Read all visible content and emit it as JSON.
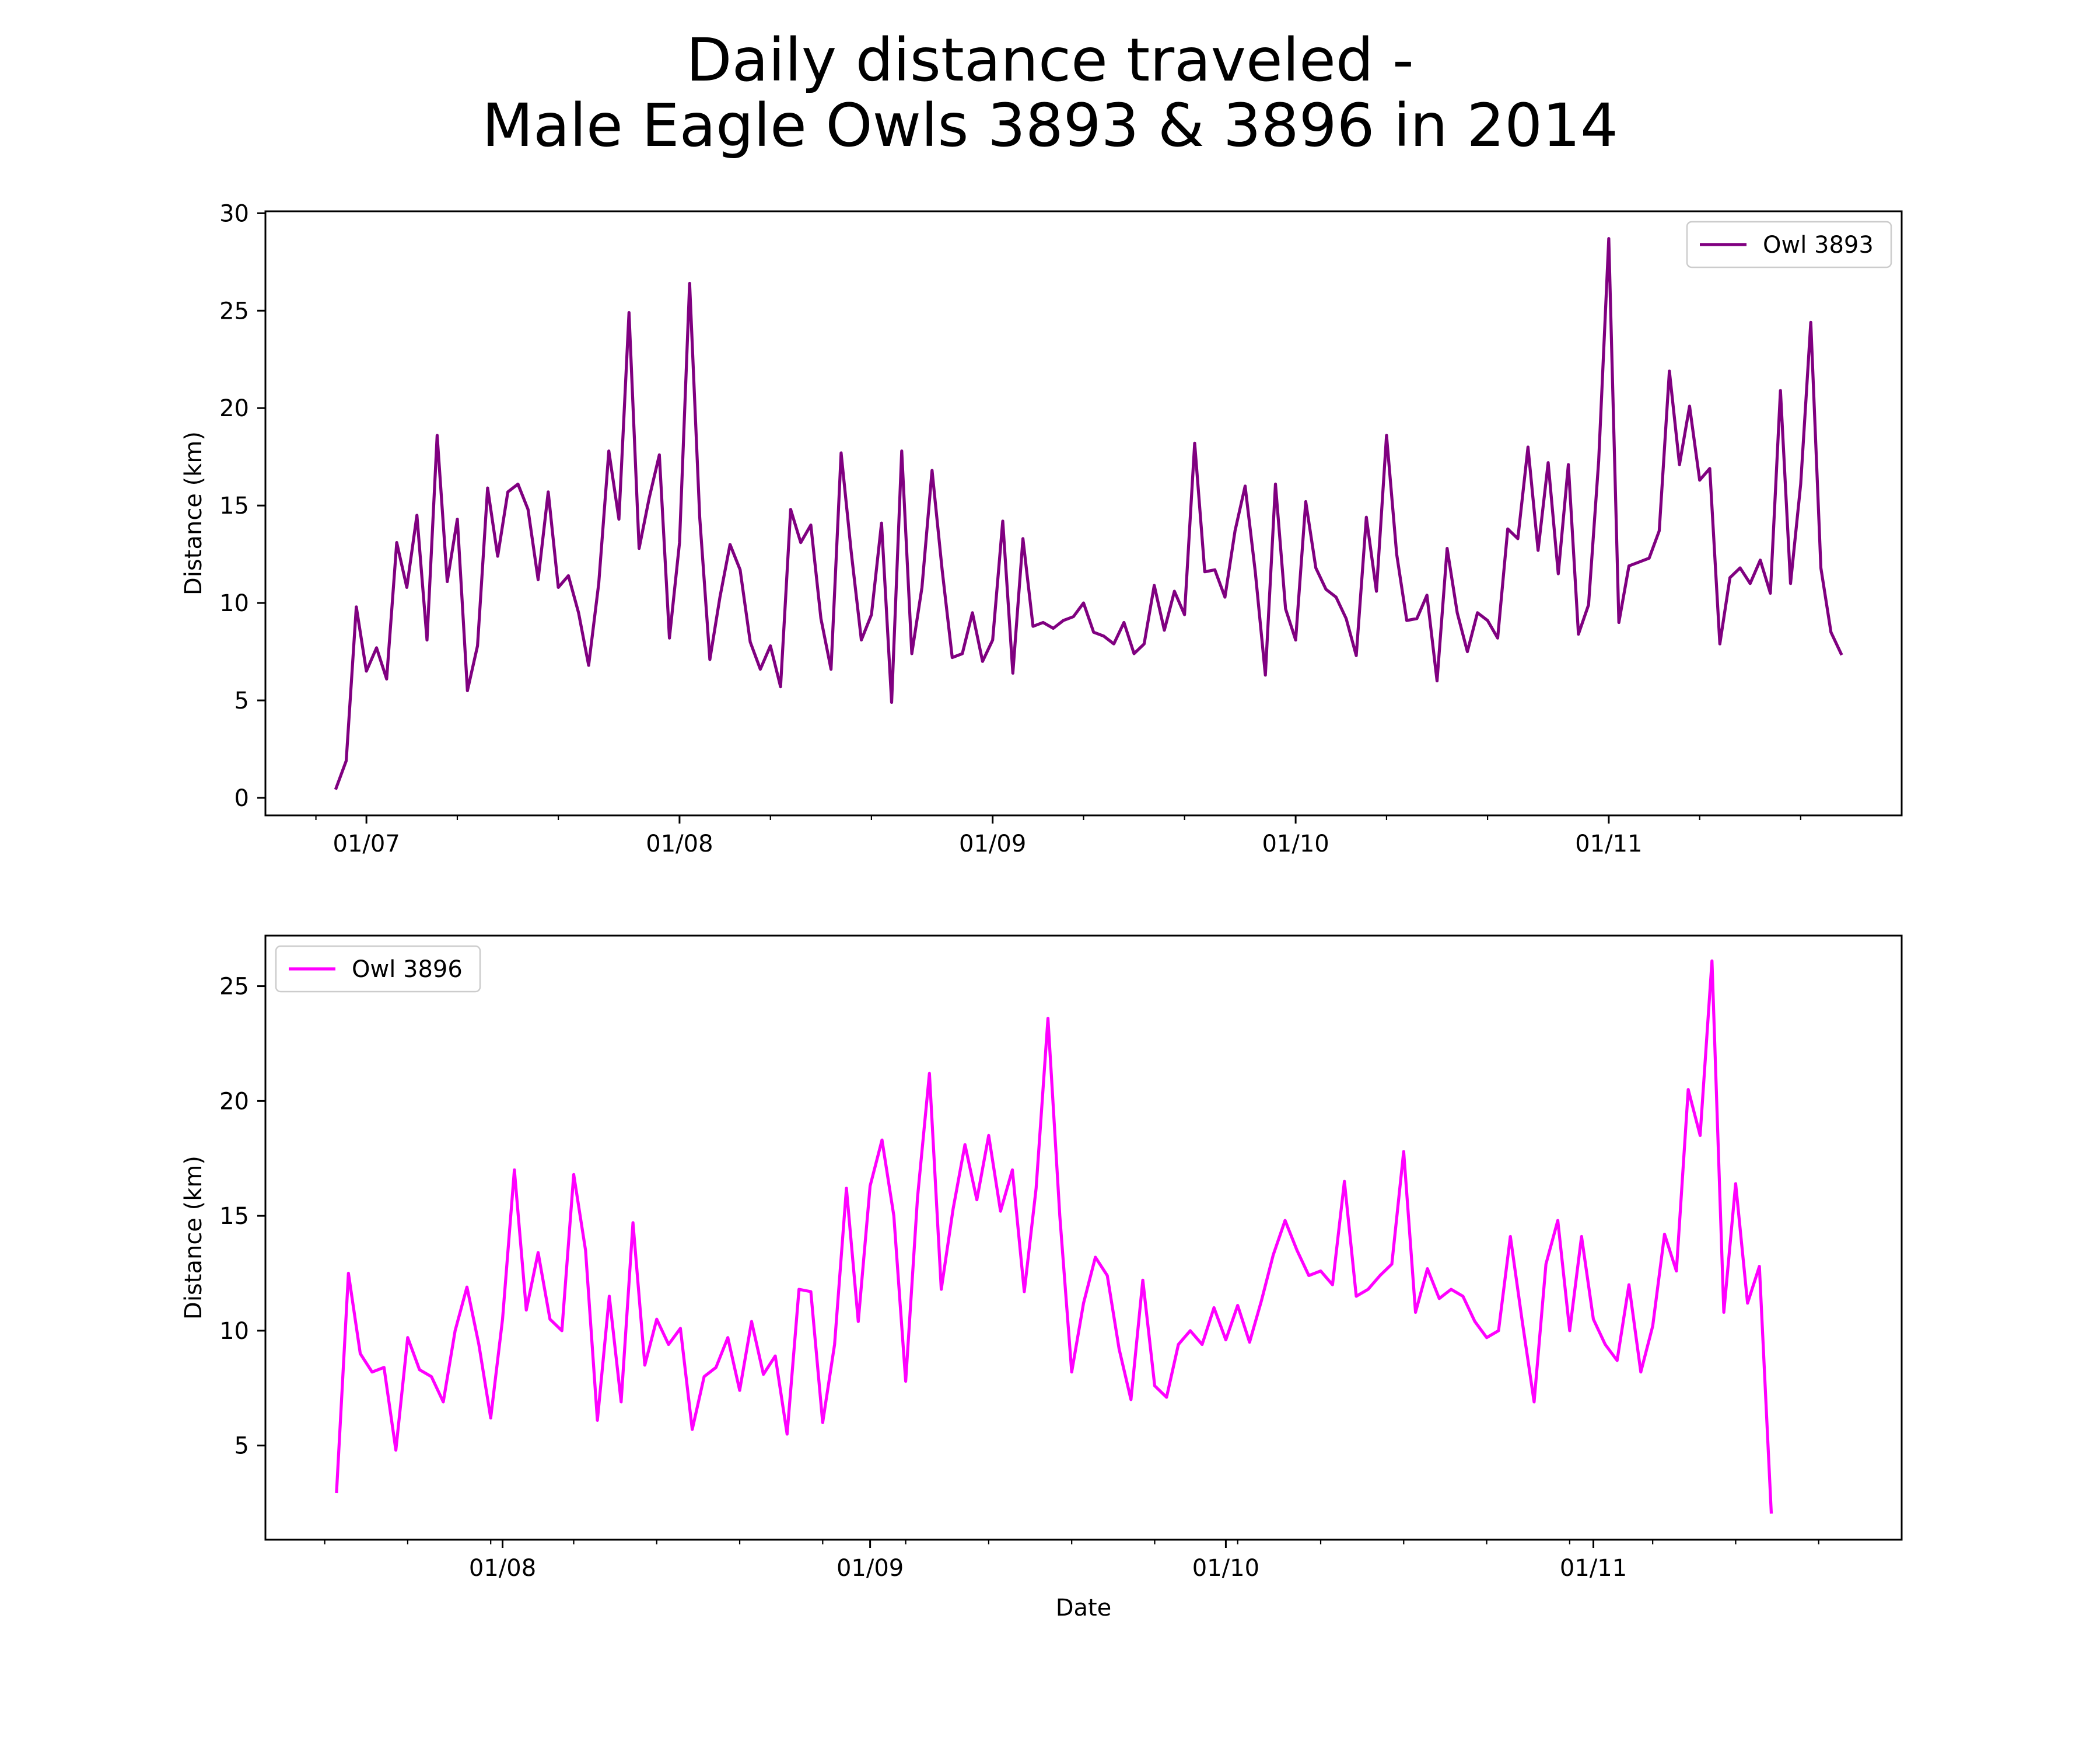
{
  "figure": {
    "title_line1": "Daily distance traveled -",
    "title_line2": "Male Eagle Owls 3893 & 3896 in 2014"
  },
  "chart_data": [
    {
      "type": "line",
      "xlabel": "",
      "ylabel": "Distance (km)",
      "x_type": "date",
      "xlim": [
        "2014-06-21",
        "2014-11-30"
      ],
      "ylim": [
        -0.9,
        30.1
      ],
      "yticks": [
        0,
        5,
        10,
        15,
        20,
        25,
        30
      ],
      "xticks": [
        {
          "date": "2014-07-01",
          "label": "01/07"
        },
        {
          "date": "2014-08-01",
          "label": "01/08"
        },
        {
          "date": "2014-09-01",
          "label": "01/09"
        },
        {
          "date": "2014-10-01",
          "label": "01/10"
        },
        {
          "date": "2014-11-01",
          "label": "01/11"
        }
      ],
      "minor_xticks": [
        "2014-06-26",
        "2014-07-10",
        "2014-07-20",
        "2014-08-10",
        "2014-08-20",
        "2014-09-10",
        "2014-09-20",
        "2014-10-10",
        "2014-10-20",
        "2014-11-10",
        "2014-11-20"
      ],
      "grid": false,
      "legend": "top-right",
      "series": [
        {
          "name": "Owl 3893",
          "color": "#800080",
          "start_date": "2014-06-28",
          "values": [
            0.5,
            1.9,
            9.8,
            6.5,
            7.7,
            6.1,
            13.1,
            10.8,
            14.5,
            8.1,
            18.6,
            11.1,
            14.3,
            5.5,
            7.8,
            15.9,
            12.4,
            15.7,
            16.1,
            14.8,
            11.2,
            15.7,
            10.8,
            11.4,
            9.5,
            6.8,
            11.0,
            17.8,
            14.3,
            24.9,
            12.8,
            15.4,
            17.6,
            8.2,
            13.1,
            26.4,
            14.4,
            7.1,
            10.3,
            13.0,
            11.7,
            8.0,
            6.6,
            7.8,
            5.7,
            14.8,
            13.1,
            14.0,
            9.2,
            6.6,
            17.7,
            12.6,
            8.1,
            9.4,
            14.1,
            4.9,
            17.8,
            7.4,
            10.8,
            16.8,
            11.7,
            7.2,
            7.4,
            9.5,
            7.0,
            8.1,
            14.2,
            6.4,
            13.3,
            8.8,
            9.0,
            8.7,
            9.1,
            9.3,
            10.0,
            8.5,
            8.3,
            7.9,
            9.0,
            7.4,
            7.9,
            10.9,
            8.6,
            10.6,
            9.4,
            18.2,
            11.6,
            11.7,
            10.3,
            13.7,
            16.0,
            11.6,
            6.3,
            16.1,
            9.7,
            8.1,
            15.2,
            11.8,
            10.7,
            10.3,
            9.2,
            7.3,
            14.4,
            10.6,
            18.6,
            12.5,
            9.1,
            9.2,
            10.4,
            6.0,
            12.8,
            9.5,
            7.5,
            9.5,
            9.1,
            8.2,
            13.8,
            13.3,
            18.0,
            12.7,
            17.2,
            11.5,
            17.1,
            8.4,
            9.9,
            17.3,
            28.7,
            9.0,
            11.9,
            12.1,
            12.3,
            13.7,
            21.9,
            17.1,
            20.1,
            16.3,
            16.9,
            7.9,
            11.3,
            11.8,
            11.0,
            12.2,
            10.5,
            20.9,
            11.0,
            16.1,
            24.4,
            11.8,
            8.5,
            7.4
          ]
        }
      ]
    },
    {
      "type": "line",
      "xlabel": "Date",
      "ylabel": "Distance (km)",
      "x_type": "date",
      "xlim": [
        "2014-07-12",
        "2014-11-27"
      ],
      "ylim": [
        0.9,
        27.2
      ],
      "yticks": [
        5,
        10,
        15,
        20,
        25
      ],
      "xticks": [
        {
          "date": "2014-08-01",
          "label": "01/08"
        },
        {
          "date": "2014-09-01",
          "label": "01/09"
        },
        {
          "date": "2014-10-01",
          "label": "01/10"
        },
        {
          "date": "2014-11-01",
          "label": "01/11"
        }
      ],
      "minor_xticks": [
        "2014-07-17",
        "2014-07-24",
        "2014-07-31",
        "2014-08-07",
        "2014-08-14",
        "2014-08-21",
        "2014-08-28",
        "2014-09-04",
        "2014-09-11",
        "2014-09-18",
        "2014-09-25",
        "2014-10-02",
        "2014-10-09",
        "2014-10-16",
        "2014-10-23",
        "2014-10-30",
        "2014-11-06",
        "2014-11-13",
        "2014-11-20"
      ],
      "grid": false,
      "legend": "top-left",
      "series": [
        {
          "name": "Owl 3896",
          "color": "#ff00ff",
          "start_date": "2014-07-18",
          "values": [
            3.0,
            12.5,
            9.0,
            8.2,
            8.4,
            4.8,
            9.7,
            8.3,
            8.0,
            6.9,
            10.0,
            11.9,
            9.4,
            6.2,
            10.5,
            17.0,
            10.9,
            13.4,
            10.5,
            10.0,
            16.8,
            13.5,
            6.1,
            11.5,
            6.9,
            14.7,
            8.5,
            10.5,
            9.4,
            10.1,
            5.7,
            8.0,
            8.4,
            9.7,
            7.4,
            10.4,
            8.1,
            8.9,
            5.5,
            11.8,
            11.7,
            6.0,
            9.4,
            16.2,
            10.4,
            16.3,
            18.3,
            15.0,
            7.8,
            15.8,
            21.2,
            11.8,
            15.3,
            18.1,
            15.7,
            18.5,
            15.2,
            17.0,
            11.7,
            16.2,
            23.6,
            15.0,
            8.2,
            11.2,
            13.2,
            12.4,
            9.2,
            7.0,
            12.2,
            7.6,
            7.1,
            9.4,
            10.0,
            9.4,
            11.0,
            9.6,
            11.1,
            9.5,
            11.3,
            13.3,
            14.8,
            13.5,
            12.4,
            12.6,
            12.0,
            16.5,
            11.5,
            11.8,
            12.4,
            12.9,
            17.8,
            10.8,
            12.7,
            11.4,
            11.8,
            11.5,
            10.4,
            9.7,
            10.0,
            14.1,
            10.4,
            6.9,
            12.9,
            14.8,
            10.0,
            14.1,
            10.5,
            9.4,
            8.7,
            12.0,
            8.2,
            10.2,
            14.2,
            12.6,
            20.5,
            18.5,
            26.1,
            10.8,
            16.4,
            11.2,
            12.8,
            2.1
          ]
        }
      ]
    }
  ]
}
